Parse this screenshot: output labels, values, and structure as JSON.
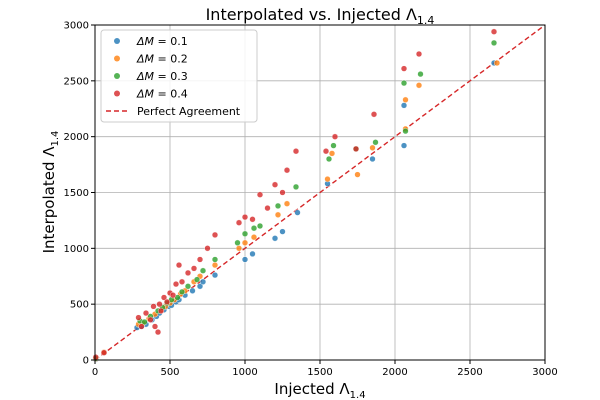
{
  "chart_data": {
    "type": "scatter",
    "title": "Interpolated vs. Injected Λ",
    "title_sub": "1.4",
    "xlabel": "Injected Λ",
    "xlabel_sub": "1.4",
    "ylabel": "Interpolated Λ",
    "ylabel_sub": "1.4",
    "xlim": [
      0,
      3000
    ],
    "ylim": [
      0,
      3000
    ],
    "xticks": [
      0,
      500,
      1000,
      1500,
      2000,
      2500,
      3000
    ],
    "yticks": [
      0,
      500,
      1000,
      1500,
      2000,
      2500,
      3000
    ],
    "grid": true,
    "legend_position": "upper-left",
    "reference_line": {
      "name": "Perfect Agreement",
      "color": "#d62728",
      "x": [
        0,
        3000
      ],
      "y": [
        0,
        3000
      ]
    },
    "series": [
      {
        "name": "ΔM = 0.1",
        "legend_prefix": "ΔM = ",
        "legend_value": "0.1",
        "color": "#1f77b4",
        "points": [
          [
            5,
            5
          ],
          [
            60,
            65
          ],
          [
            280,
            290
          ],
          [
            310,
            300
          ],
          [
            340,
            320
          ],
          [
            380,
            360
          ],
          [
            410,
            390
          ],
          [
            430,
            420
          ],
          [
            460,
            450
          ],
          [
            490,
            480
          ],
          [
            510,
            490
          ],
          [
            540,
            520
          ],
          [
            560,
            540
          ],
          [
            600,
            580
          ],
          [
            650,
            620
          ],
          [
            700,
            660
          ],
          [
            720,
            700
          ],
          [
            800,
            760
          ],
          [
            1000,
            900
          ],
          [
            1050,
            950
          ],
          [
            1200,
            1090
          ],
          [
            1250,
            1150
          ],
          [
            1350,
            1320
          ],
          [
            1550,
            1580
          ],
          [
            1850,
            1800
          ],
          [
            2060,
            1920
          ],
          [
            2060,
            2280
          ],
          [
            2660,
            2660
          ]
        ]
      },
      {
        "name": "ΔM = 0.2",
        "legend_prefix": "ΔM = ",
        "legend_value": "0.2",
        "color": "#ff7f0e",
        "points": [
          [
            5,
            10
          ],
          [
            60,
            70
          ],
          [
            290,
            320
          ],
          [
            320,
            330
          ],
          [
            360,
            370
          ],
          [
            400,
            410
          ],
          [
            440,
            450
          ],
          [
            470,
            480
          ],
          [
            500,
            510
          ],
          [
            530,
            540
          ],
          [
            570,
            590
          ],
          [
            600,
            620
          ],
          [
            660,
            700
          ],
          [
            700,
            750
          ],
          [
            800,
            850
          ],
          [
            960,
            1000
          ],
          [
            1000,
            1050
          ],
          [
            1060,
            1100
          ],
          [
            1220,
            1300
          ],
          [
            1280,
            1400
          ],
          [
            1550,
            1620
          ],
          [
            1580,
            1850
          ],
          [
            1750,
            1660
          ],
          [
            1850,
            1900
          ],
          [
            2070,
            2070
          ],
          [
            2070,
            2330
          ],
          [
            2160,
            2460
          ],
          [
            2680,
            2660
          ]
        ]
      },
      {
        "name": "ΔM = 0.3",
        "legend_prefix": "ΔM = ",
        "legend_value": "0.3",
        "color": "#2ca02c",
        "points": [
          [
            5,
            15
          ],
          [
            300,
            350
          ],
          [
            330,
            340
          ],
          [
            370,
            390
          ],
          [
            420,
            440
          ],
          [
            450,
            470
          ],
          [
            480,
            510
          ],
          [
            510,
            540
          ],
          [
            550,
            560
          ],
          [
            580,
            610
          ],
          [
            620,
            660
          ],
          [
            680,
            720
          ],
          [
            720,
            800
          ],
          [
            800,
            900
          ],
          [
            950,
            1050
          ],
          [
            1000,
            1130
          ],
          [
            1060,
            1180
          ],
          [
            1100,
            1200
          ],
          [
            1220,
            1380
          ],
          [
            1340,
            1550
          ],
          [
            1560,
            1800
          ],
          [
            1590,
            1920
          ],
          [
            1740,
            1890
          ],
          [
            1870,
            1950
          ],
          [
            2060,
            2480
          ],
          [
            2070,
            2050
          ],
          [
            2170,
            2560
          ],
          [
            2660,
            2840
          ]
        ]
      },
      {
        "name": "ΔM = 0.4",
        "legend_prefix": "ΔM = ",
        "legend_value": "0.4",
        "color": "#d62728",
        "points": [
          [
            5,
            25
          ],
          [
            60,
            65
          ],
          [
            290,
            380
          ],
          [
            310,
            300
          ],
          [
            340,
            420
          ],
          [
            370,
            360
          ],
          [
            390,
            480
          ],
          [
            400,
            300
          ],
          [
            420,
            250
          ],
          [
            430,
            500
          ],
          [
            440,
            440
          ],
          [
            460,
            560
          ],
          [
            480,
            520
          ],
          [
            500,
            600
          ],
          [
            520,
            580
          ],
          [
            540,
            680
          ],
          [
            560,
            850
          ],
          [
            580,
            700
          ],
          [
            620,
            780
          ],
          [
            660,
            820
          ],
          [
            700,
            900
          ],
          [
            750,
            1000
          ],
          [
            800,
            1120
          ],
          [
            960,
            1230
          ],
          [
            1000,
            1280
          ],
          [
            1050,
            1260
          ],
          [
            1100,
            1480
          ],
          [
            1150,
            1360
          ],
          [
            1200,
            1570
          ],
          [
            1250,
            1500
          ],
          [
            1280,
            1700
          ],
          [
            1340,
            1870
          ],
          [
            1540,
            1870
          ],
          [
            1600,
            2000
          ],
          [
            1740,
            1890
          ],
          [
            1860,
            2200
          ],
          [
            2060,
            2610
          ],
          [
            2160,
            2740
          ],
          [
            2660,
            2940
          ]
        ]
      }
    ]
  }
}
